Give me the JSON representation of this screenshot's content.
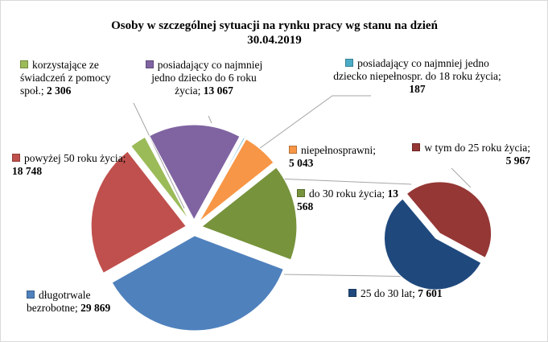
{
  "chart_data": {
    "type": "pie",
    "title": "Osoby w szczególnej sytuacji na rynku pracy wg stanu  na dzień 30.04.2019",
    "categories": [
      "posiadający co najmniej jedno dziecko do 6 roku życia;",
      "posiadający co najmniej jedno dziecko niepełnospr. do 18 roku życia;",
      "niepełnosprawni;",
      "do 30 roku życia;",
      "długotrwale bezrobotne;",
      "powyżej 50 roku życia;",
      "korzystające ze świadczeń z pomocy społ.;"
    ],
    "values": [
      13067,
      187,
      5043,
      13568,
      29869,
      18748,
      2306
    ],
    "value_labels": [
      "13 067",
      "187",
      "5 043",
      "13 568",
      "29 869",
      "18 748",
      "2 306"
    ],
    "colors": [
      "#8064a2",
      "#4bacc6",
      "#f79646",
      "#77933c",
      "#4f81bd",
      "#c0504d",
      "#9bbb59"
    ],
    "secondary": {
      "categories": [
        "w tym do 25 roku życia;",
        "25 do 30 lat;"
      ],
      "values": [
        5967,
        7601
      ],
      "value_labels": [
        "5 967",
        "7 601"
      ],
      "colors": [
        "#953735",
        "#1f497d"
      ]
    }
  }
}
